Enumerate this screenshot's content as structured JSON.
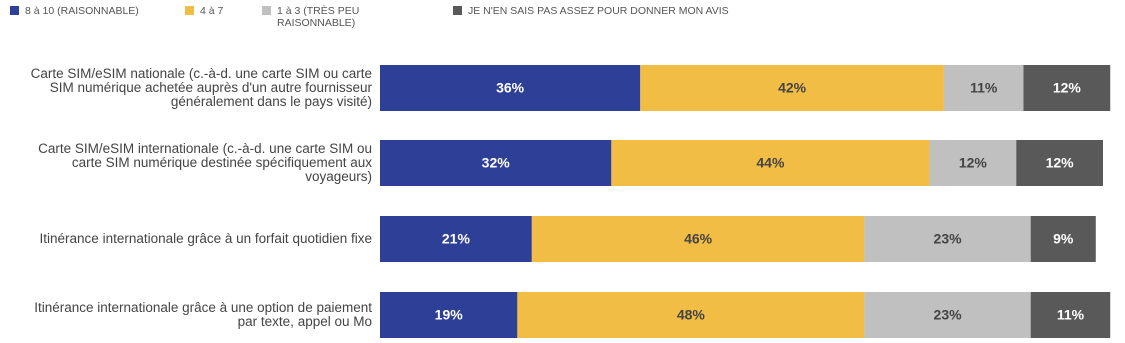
{
  "chart_data": {
    "type": "stacked-bar-horizontal",
    "categories": [
      "Carte SIM/eSIM nationale (c.-à-d. une carte SIM ou carte SIM numérique achetée auprès d'un autre fournisseur généralement dans le pays visité)",
      "Carte SIM/eSIM internationale (c.-à-d. une carte SIM ou carte SIM numérique destinée spécifiquement aux voyageurs)",
      "Itinérance internationale grâce à un forfait quotidien fixe",
      "Itinérance internationale grâce à une option de paiement par texte, appel ou Mo"
    ],
    "series": [
      {
        "name": "8 à 10 (RAISONNABLE)",
        "color": "#2e3f98",
        "values": [
          36,
          32,
          21,
          19
        ],
        "value_labels": [
          "36%",
          "32%",
          "21%",
          "19%"
        ]
      },
      {
        "name": "4 à 7",
        "color": "#f1bd45",
        "values": [
          42,
          44,
          46,
          48
        ],
        "value_labels": [
          "42%",
          "44%",
          "46%",
          "48%"
        ]
      },
      {
        "name": "1 à 3 (TRÈS PEU RAISONNABLE)",
        "color": "#c0c0c0",
        "values": [
          11,
          12,
          23,
          23
        ],
        "value_labels": [
          "11%",
          "12%",
          "23%",
          "23%"
        ]
      },
      {
        "name": "JE N'EN SAIS PAS ASSEZ POUR DONNER MON AVIS",
        "color": "#595959",
        "values": [
          12,
          12,
          9,
          11
        ],
        "value_labels": [
          "12%",
          "12%",
          "9%",
          "11%"
        ]
      }
    ]
  }
}
